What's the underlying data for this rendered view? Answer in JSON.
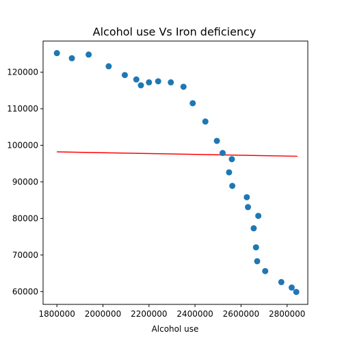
{
  "chart_data": {
    "type": "scatter",
    "title": "Alcohol use Vs Iron deficiency",
    "xlabel": "Alcohol use",
    "ylabel": "",
    "xlim": [
      1740000,
      2890000
    ],
    "ylim": [
      56500,
      128500
    ],
    "x_ticks": [
      1800000,
      2000000,
      2200000,
      2400000,
      2600000,
      2800000
    ],
    "x_tick_labels": [
      "1800000",
      "2000000",
      "2200000",
      "2400000",
      "2600000",
      "2800000"
    ],
    "y_ticks": [
      60000,
      70000,
      80000,
      90000,
      100000,
      110000,
      120000
    ],
    "y_tick_labels": [
      "60000",
      "70000",
      "80000",
      "90000",
      "100000",
      "110000",
      "120000"
    ],
    "grid": false,
    "colors": {
      "points": "#1f77b4",
      "fit_line": "#ff0000"
    },
    "points": {
      "x": [
        1800000,
        1865000,
        1938000,
        2025000,
        2095000,
        2145000,
        2165000,
        2200000,
        2240000,
        2295000,
        2350000,
        2390000,
        2445000,
        2495000,
        2520000,
        2548000,
        2560000,
        2562000,
        2625000,
        2630000,
        2655000,
        2665000,
        2670000,
        2675000,
        2705000,
        2775000,
        2820000,
        2840000
      ],
      "y": [
        125200,
        123800,
        124800,
        121600,
        119200,
        118000,
        116400,
        117200,
        117500,
        117200,
        116000,
        111500,
        106500,
        101200,
        97900,
        92600,
        96200,
        88900,
        85800,
        83100,
        77300,
        72100,
        68300,
        80700,
        65600,
        62600,
        61100,
        59900
      ]
    },
    "fit_line": {
      "x": [
        1800000,
        2845000
      ],
      "y": [
        98200,
        97000
      ]
    }
  }
}
